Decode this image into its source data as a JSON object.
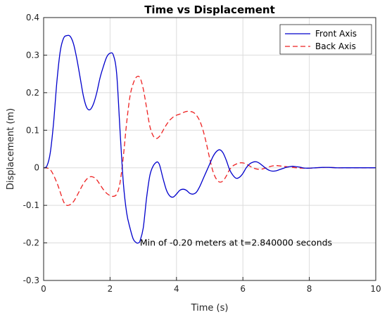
{
  "chart_data": {
    "type": "line",
    "title": "Time vs Displacement",
    "xlabel": "Time (s)",
    "ylabel": "Displacement (m)",
    "xlim": [
      0,
      10
    ],
    "ylim": [
      -0.3,
      0.4
    ],
    "xticks": [
      0,
      2,
      4,
      6,
      8,
      10
    ],
    "yticks": [
      -0.3,
      -0.2,
      -0.1,
      0,
      0.1,
      0.2,
      0.3,
      0.4
    ],
    "xtick_labels": [
      "0",
      "2",
      "4",
      "6",
      "8",
      "10"
    ],
    "ytick_labels": [
      "-0.3",
      "-0.2",
      "-0.1",
      "0",
      "0.1",
      "0.2",
      "0.3",
      "0.4"
    ],
    "grid": true,
    "legend_position": "top-right",
    "annotation": {
      "text": "Min of -0.20 meters at t=2.840000 seconds",
      "x": 2.9,
      "y": -0.2
    },
    "series": [
      {
        "name": "Front Axis",
        "color": "#0000cc",
        "style": "solid",
        "x": [
          0,
          0.1,
          0.2,
          0.3,
          0.4,
          0.5,
          0.6,
          0.7,
          0.8,
          0.9,
          1.0,
          1.1,
          1.2,
          1.3,
          1.4,
          1.5,
          1.6,
          1.7,
          1.8,
          1.9,
          2.0,
          2.1,
          2.2,
          2.3,
          2.4,
          2.5,
          2.6,
          2.7,
          2.8,
          2.85,
          2.9,
          3.0,
          3.1,
          3.2,
          3.3,
          3.4,
          3.45,
          3.5,
          3.6,
          3.7,
          3.8,
          3.9,
          4.0,
          4.1,
          4.2,
          4.3,
          4.4,
          4.5,
          4.6,
          4.7,
          4.8,
          4.9,
          5.0,
          5.1,
          5.2,
          5.3,
          5.4,
          5.5,
          5.6,
          5.7,
          5.8,
          5.9,
          6.0,
          6.1,
          6.2,
          6.3,
          6.4,
          6.5,
          6.6,
          6.7,
          6.8,
          6.9,
          7.0,
          7.1,
          7.2,
          7.3,
          7.4,
          7.5,
          7.6,
          7.7,
          7.8,
          7.9,
          8.0,
          8.2,
          8.4,
          8.6,
          8.8,
          9.0,
          9.2,
          9.4,
          9.6,
          9.8,
          10.0
        ],
        "y": [
          0,
          0.005,
          0.04,
          0.12,
          0.23,
          0.31,
          0.345,
          0.352,
          0.35,
          0.33,
          0.29,
          0.24,
          0.19,
          0.16,
          0.155,
          0.17,
          0.2,
          0.24,
          0.27,
          0.295,
          0.305,
          0.3,
          0.25,
          0.1,
          -0.04,
          -0.12,
          -0.16,
          -0.19,
          -0.2,
          -0.2,
          -0.195,
          -0.16,
          -0.08,
          -0.02,
          0.005,
          0.015,
          0.014,
          0.005,
          -0.03,
          -0.06,
          -0.075,
          -0.078,
          -0.07,
          -0.06,
          -0.057,
          -0.06,
          -0.068,
          -0.07,
          -0.065,
          -0.05,
          -0.03,
          -0.01,
          0.01,
          0.03,
          0.043,
          0.048,
          0.04,
          0.02,
          -0.005,
          -0.02,
          -0.028,
          -0.025,
          -0.015,
          0.0,
          0.01,
          0.015,
          0.016,
          0.012,
          0.005,
          -0.002,
          -0.007,
          -0.009,
          -0.008,
          -0.005,
          -0.002,
          0.001,
          0.003,
          0.004,
          0.003,
          0.002,
          0.0,
          -0.001,
          -0.001,
          0.0,
          0.001,
          0.001,
          0.0,
          0.0,
          0.0,
          0.0,
          0.0,
          0.0,
          0.0
        ]
      },
      {
        "name": "Back Axis",
        "color": "#ee2222",
        "style": "dashed",
        "x": [
          0,
          0.2,
          0.4,
          0.6,
          0.7,
          0.8,
          0.9,
          1.0,
          1.1,
          1.2,
          1.3,
          1.4,
          1.5,
          1.6,
          1.7,
          1.8,
          1.9,
          2.0,
          2.1,
          2.2,
          2.3,
          2.4,
          2.5,
          2.6,
          2.7,
          2.8,
          2.9,
          3.0,
          3.1,
          3.2,
          3.3,
          3.4,
          3.5,
          3.6,
          3.7,
          3.8,
          3.9,
          4.0,
          4.1,
          4.2,
          4.3,
          4.4,
          4.5,
          4.6,
          4.7,
          4.8,
          4.9,
          5.0,
          5.1,
          5.2,
          5.3,
          5.4,
          5.5,
          5.6,
          5.7,
          5.8,
          5.9,
          6.0,
          6.1,
          6.2,
          6.3,
          6.4,
          6.5,
          6.6,
          6.7,
          6.8,
          6.9,
          7.0,
          7.2,
          7.4,
          7.6,
          7.8,
          8.0,
          8.2,
          8.4,
          8.6,
          8.8,
          9.0,
          9.2,
          9.4,
          9.6,
          9.8,
          10.0
        ],
        "y": [
          0,
          -0.005,
          -0.04,
          -0.09,
          -0.1,
          -0.098,
          -0.09,
          -0.075,
          -0.058,
          -0.042,
          -0.03,
          -0.024,
          -0.025,
          -0.032,
          -0.045,
          -0.058,
          -0.068,
          -0.074,
          -0.076,
          -0.07,
          -0.04,
          0.03,
          0.12,
          0.19,
          0.225,
          0.242,
          0.24,
          0.21,
          0.16,
          0.11,
          0.085,
          0.078,
          0.085,
          0.1,
          0.115,
          0.127,
          0.135,
          0.14,
          0.143,
          0.147,
          0.15,
          0.15,
          0.148,
          0.14,
          0.125,
          0.1,
          0.065,
          0.025,
          -0.01,
          -0.03,
          -0.038,
          -0.035,
          -0.022,
          -0.005,
          0.005,
          0.01,
          0.013,
          0.013,
          0.01,
          0.005,
          0.0,
          -0.003,
          -0.004,
          -0.003,
          0.0,
          0.003,
          0.005,
          0.006,
          0.004,
          0.002,
          0.0,
          -0.001,
          -0.001,
          0.0,
          0.001,
          0.001,
          0.0,
          0.0,
          0.0,
          0.0,
          0.0,
          0.0,
          0.0
        ]
      }
    ]
  }
}
